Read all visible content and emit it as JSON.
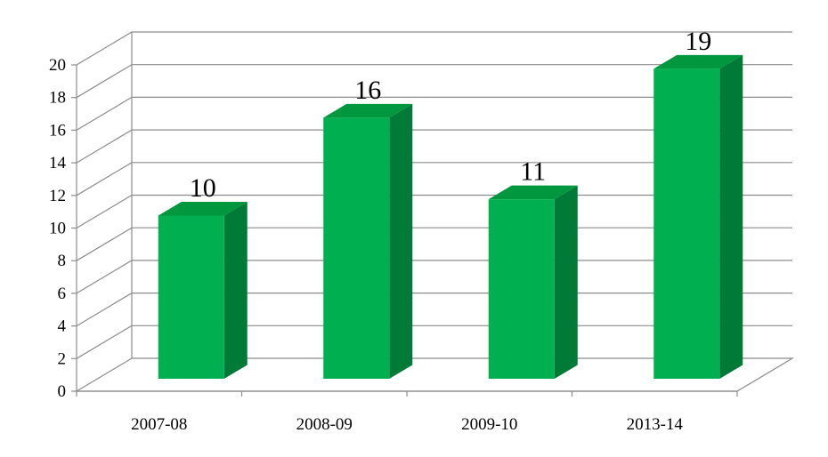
{
  "chart_data": {
    "type": "bar",
    "categories": [
      "2007-08",
      "2008-09",
      "2009-10",
      "2013-14"
    ],
    "values": [
      10,
      16,
      11,
      19
    ],
    "ylim": [
      0,
      20
    ],
    "yticks": [
      0,
      2,
      4,
      6,
      8,
      10,
      12,
      14,
      16,
      18,
      20
    ],
    "ytick_labels": [
      "0",
      "2",
      "4",
      "6",
      "8",
      "10",
      "12",
      "14",
      "16",
      "18",
      "20"
    ],
    "data_labels": [
      "10",
      "16",
      "11",
      "19"
    ],
    "title": "",
    "xlabel": "",
    "ylabel": "",
    "grid": true,
    "style": "3d",
    "colors": {
      "bar_front": "#00b050",
      "bar_side": "#007a37",
      "bar_top": "#00973f",
      "grid": "#8c8c8c",
      "axis": "#8c8c8c"
    }
  }
}
